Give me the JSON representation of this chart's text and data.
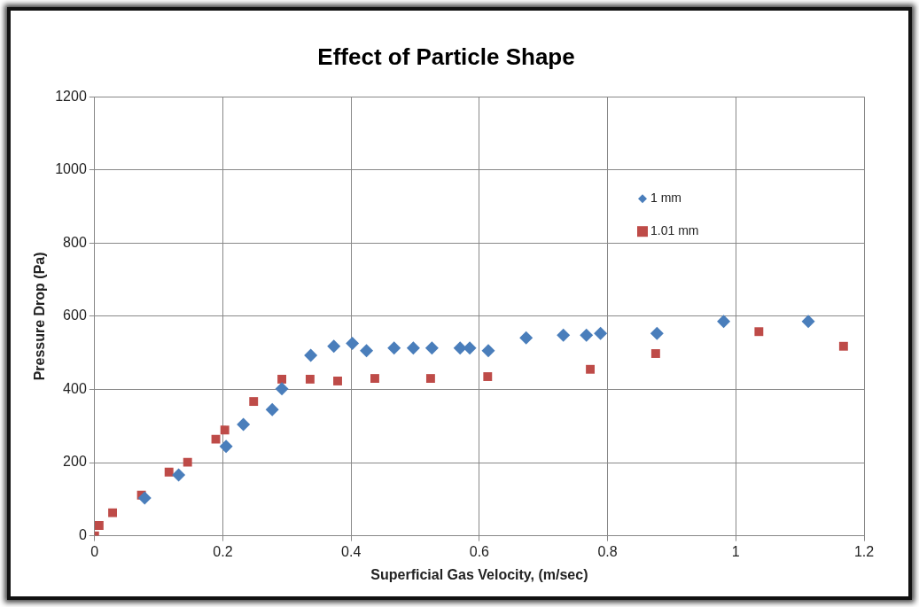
{
  "chart_data": {
    "type": "scatter",
    "title": "Effect of Particle Shape",
    "xlabel": "Superficial Gas Velocity, (m/sec)",
    "ylabel": "Pressure Drop (Pa)",
    "xlim": [
      0,
      1.2
    ],
    "xticks": [
      0,
      0.2,
      0.4,
      0.6,
      0.8,
      1,
      1.2
    ],
    "ylim": [
      0,
      1200
    ],
    "yticks": [
      0,
      200,
      400,
      600,
      800,
      1000,
      1200
    ],
    "grid": true,
    "legend": "top right",
    "series": [
      {
        "name": "1 mm",
        "color": "#4a7ebb",
        "marker": "diamond",
        "x": [
          0.078,
          0.131,
          0.205,
          0.232,
          0.277,
          0.292,
          0.337,
          0.373,
          0.402,
          0.424,
          0.467,
          0.497,
          0.526,
          0.57,
          0.585,
          0.614,
          0.673,
          0.731,
          0.767,
          0.789,
          0.877,
          0.981,
          1.113
        ],
        "values": [
          103,
          166,
          244,
          304,
          345,
          402,
          493,
          518,
          526,
          506,
          513,
          513,
          513,
          513,
          513,
          506,
          541,
          548,
          548,
          553,
          553,
          586,
          586
        ]
      },
      {
        "name": "1.01 mm",
        "color": "#be4b48",
        "marker": "square",
        "x": [
          0,
          0.007,
          0.028,
          0.073,
          0.116,
          0.145,
          0.189,
          0.203,
          0.248,
          0.292,
          0.336,
          0.379,
          0.437,
          0.524,
          0.613,
          0.773,
          0.875,
          1.036,
          1.168
        ],
        "values": [
          0,
          28,
          63,
          111,
          174,
          201,
          264,
          289,
          367,
          428,
          428,
          423,
          430,
          430,
          435,
          455,
          498,
          558,
          518
        ]
      }
    ]
  }
}
